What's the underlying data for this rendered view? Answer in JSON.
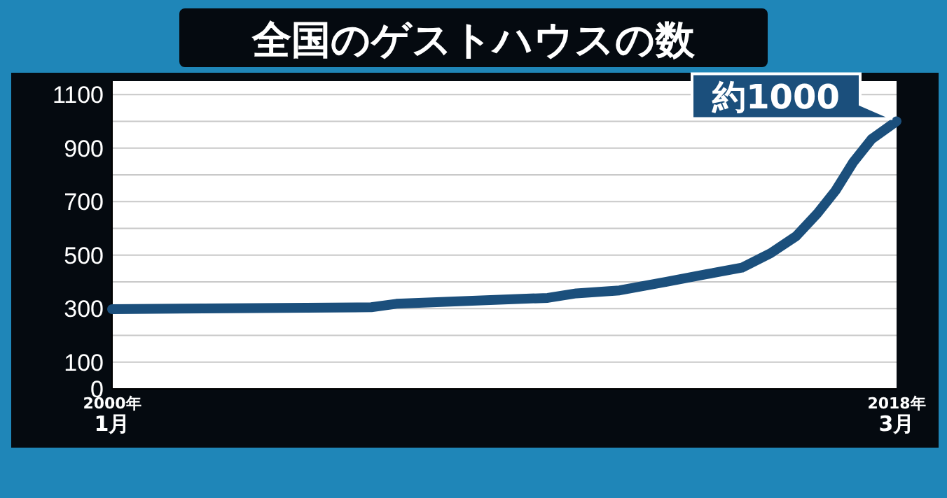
{
  "chart_data": {
    "type": "line",
    "title": "全国のゲストハウスの数",
    "x": [
      "2000-01",
      "2006-01",
      "2006-08",
      "2010-02",
      "2010-10",
      "2011-10",
      "2012-11",
      "2013-10",
      "2014-08",
      "2015-04",
      "2015-11",
      "2016-05",
      "2016-10",
      "2017-03",
      "2017-08",
      "2018-03"
    ],
    "series": [
      {
        "color": "#1b4f7c",
        "values": [
          298,
          305,
          318,
          340,
          357,
          368,
          400,
          428,
          453,
          507,
          570,
          656,
          741,
          848,
          933,
          1000
        ]
      }
    ],
    "xlim": [
      "2000-01",
      "2018-03"
    ],
    "xticks": [
      {
        "value": "2000-01",
        "label": "2000年\n1月"
      },
      {
        "value": "2018-03",
        "label": "2018年\n3月"
      }
    ],
    "ylim": [
      0,
      1150
    ],
    "yticks": [
      0,
      100,
      {
        "value": 200,
        "label": null
      },
      300,
      {
        "value": 400,
        "label": null
      },
      500,
      {
        "value": 600,
        "label": null
      },
      700,
      {
        "value": 800,
        "label": null
      },
      900,
      {
        "value": 1000,
        "label": null
      },
      1100
    ],
    "grid": "y",
    "marker": "none",
    "line_style": "solid",
    "annotations": [
      {
        "text": "約1000",
        "x": "2018-03",
        "y": 1000
      }
    ]
  }
}
